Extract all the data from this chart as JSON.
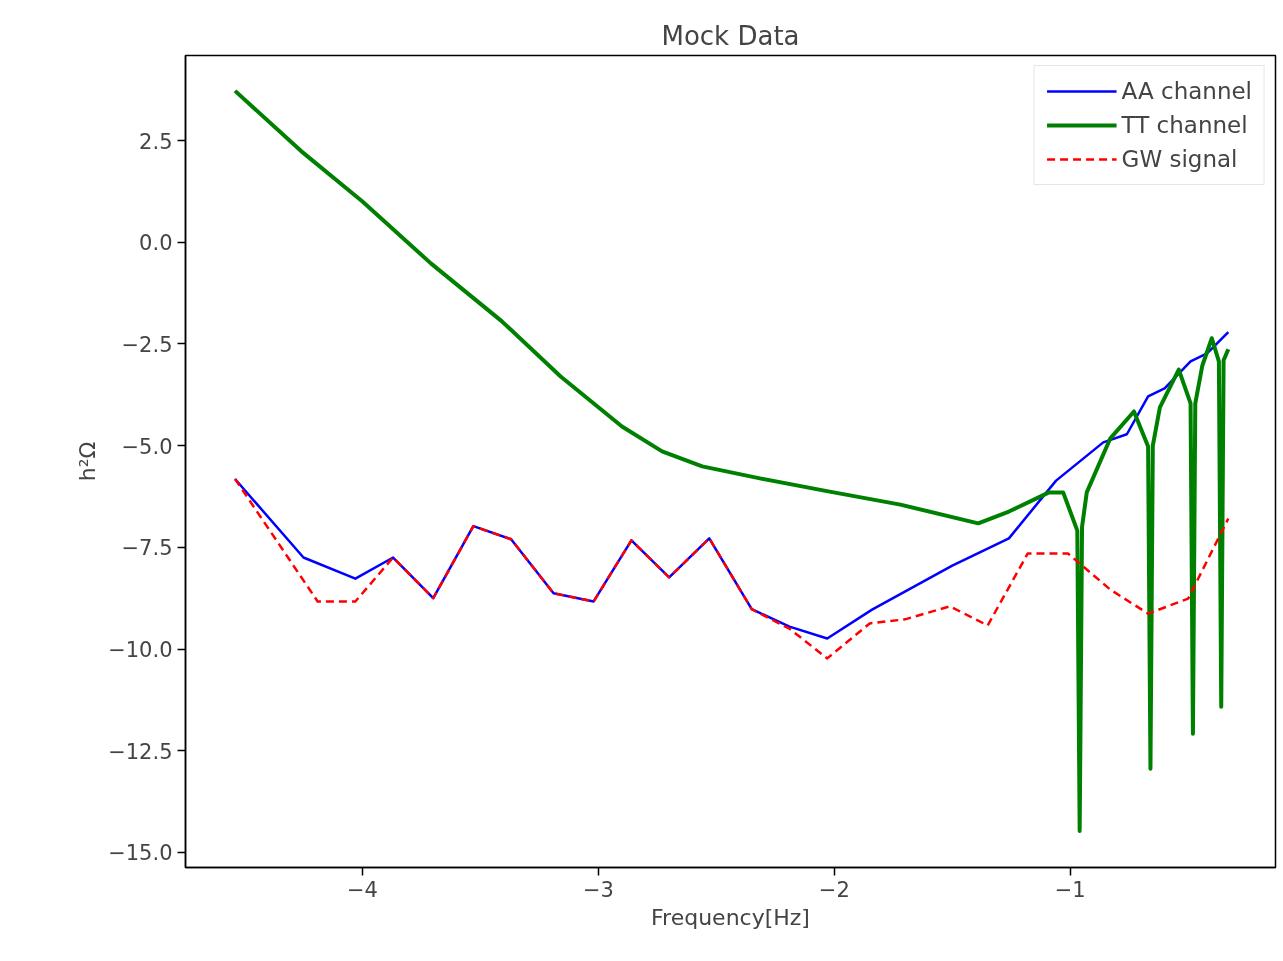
{
  "chart_data": {
    "type": "line",
    "title": "Mock Data",
    "xlabel": "Frequency[Hz]",
    "ylabel": "h²Ω",
    "xlim": [
      -4.75,
      -0.13
    ],
    "ylim": [
      -15.37,
      4.59
    ],
    "xticks": [
      {
        "value": -4,
        "label": "−4"
      },
      {
        "value": -3,
        "label": "−3"
      },
      {
        "value": -2,
        "label": "−2"
      },
      {
        "value": -1,
        "label": "−1"
      }
    ],
    "yticks": [
      {
        "value": -15,
        "label": "−15.0"
      },
      {
        "value": -12.5,
        "label": "−12.5"
      },
      {
        "value": -10,
        "label": "−10.0"
      },
      {
        "value": -7.5,
        "label": "−7.5"
      },
      {
        "value": -5,
        "label": "−5.0"
      },
      {
        "value": -2.5,
        "label": "−2.5"
      },
      {
        "value": 0,
        "label": "0.0"
      },
      {
        "value": 2.5,
        "label": "2.5"
      }
    ],
    "grid": false,
    "legend": "top right",
    "series": [
      {
        "name": "AA channel",
        "color": "#0000ff",
        "line_style": "solid",
        "x": [
          -4.54,
          -4.25,
          -4.03,
          -3.87,
          -3.7,
          -3.53,
          -3.37,
          -3.19,
          -3.02,
          -2.86,
          -2.7,
          -2.53,
          -2.35,
          -2.19,
          -2.03,
          -1.84,
          -1.5,
          -1.26,
          -1.06,
          -0.86,
          -0.76,
          -0.67,
          -0.6,
          -0.49,
          -0.42,
          -0.33
        ],
        "values": [
          -5.82,
          -7.75,
          -8.27,
          -7.75,
          -8.75,
          -6.98,
          -7.3,
          -8.63,
          -8.83,
          -7.33,
          -8.24,
          -7.28,
          -9.02,
          -9.45,
          -9.74,
          -9.03,
          -7.95,
          -7.28,
          -5.86,
          -4.92,
          -4.72,
          -3.79,
          -3.59,
          -2.93,
          -2.73,
          -2.21
        ]
      },
      {
        "name": "TT channel",
        "color": "#008000",
        "line_style": "solid",
        "x": [
          -4.54,
          -4.26,
          -4.0,
          -3.71,
          -3.41,
          -3.16,
          -2.9,
          -2.73,
          -2.56,
          -2.31,
          -2.02,
          -1.72,
          -1.39,
          -1.26,
          -1.09,
          -1.03,
          -0.97,
          -0.96,
          -0.95,
          -0.93,
          -0.83,
          -0.73,
          -0.67,
          -0.66,
          -0.65,
          -0.62,
          -0.54,
          -0.49,
          -0.48,
          -0.47,
          -0.44,
          -0.4,
          -0.37,
          -0.36,
          -0.35,
          -0.33
        ],
        "values": [
          3.72,
          2.24,
          1.0,
          -0.52,
          -1.94,
          -3.3,
          -4.53,
          -5.14,
          -5.51,
          -5.81,
          -6.13,
          -6.45,
          -6.91,
          -6.62,
          -6.15,
          -6.15,
          -7.09,
          -14.47,
          -7.0,
          -6.15,
          -4.82,
          -4.16,
          -5.02,
          -12.94,
          -5.0,
          -4.06,
          -3.13,
          -3.96,
          -12.08,
          -3.96,
          -3.03,
          -2.36,
          -2.93,
          -11.42,
          -2.9,
          -2.63
        ]
      },
      {
        "name": "GW signal",
        "color": "#ff0000",
        "line_style": "dashed",
        "x": [
          -4.54,
          -4.19,
          -4.03,
          -3.87,
          -3.7,
          -3.53,
          -3.37,
          -3.19,
          -3.02,
          -2.86,
          -2.7,
          -2.53,
          -2.35,
          -2.19,
          -2.03,
          -1.85,
          -1.7,
          -1.51,
          -1.35,
          -1.18,
          -1.01,
          -0.83,
          -0.67,
          -0.5,
          -0.33
        ],
        "values": [
          -5.82,
          -8.83,
          -8.83,
          -7.75,
          -8.75,
          -6.98,
          -7.3,
          -8.63,
          -8.83,
          -7.33,
          -8.24,
          -7.28,
          -9.02,
          -9.5,
          -10.23,
          -9.37,
          -9.27,
          -8.95,
          -9.42,
          -7.65,
          -7.65,
          -8.54,
          -9.13,
          -8.76,
          -6.79
        ]
      }
    ]
  }
}
